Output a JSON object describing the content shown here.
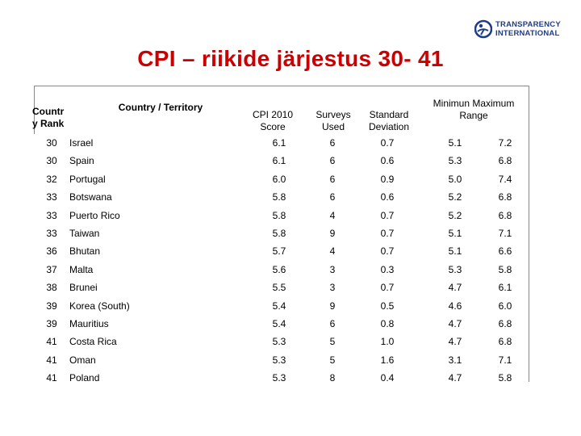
{
  "logo": {
    "line1": "TRANSPARENCY",
    "line2": "INTERNATIONAL"
  },
  "title": "CPI – riikide järjestus 30- 41",
  "headers": {
    "rank": "Countr y Rank",
    "country": "Country / Territory",
    "score": "CPI 2010 Score",
    "surveys": "Surveys Used",
    "sd": "Standard Deviation",
    "range": "Minimun Maximum Range"
  },
  "rows": [
    {
      "rank": "30",
      "country": "Israel",
      "score": "6.1",
      "surveys": "6",
      "sd": "0.7",
      "min": "5.1",
      "max": "7.2"
    },
    {
      "rank": "30",
      "country": "Spain",
      "score": "6.1",
      "surveys": "6",
      "sd": "0.6",
      "min": "5.3",
      "max": "6.8"
    },
    {
      "rank": "32",
      "country": "Portugal",
      "score": "6.0",
      "surveys": "6",
      "sd": "0.9",
      "min": "5.0",
      "max": "7.4"
    },
    {
      "rank": "33",
      "country": "Botswana",
      "score": "5.8",
      "surveys": "6",
      "sd": "0.6",
      "min": "5.2",
      "max": "6.8"
    },
    {
      "rank": "33",
      "country": "Puerto Rico",
      "score": "5.8",
      "surveys": "4",
      "sd": "0.7",
      "min": "5.2",
      "max": "6.8"
    },
    {
      "rank": "33",
      "country": "Taiwan",
      "score": "5.8",
      "surveys": "9",
      "sd": "0.7",
      "min": "5.1",
      "max": "7.1"
    },
    {
      "rank": "36",
      "country": "Bhutan",
      "score": "5.7",
      "surveys": "4",
      "sd": "0.7",
      "min": "5.1",
      "max": "6.6"
    },
    {
      "rank": "37",
      "country": "Malta",
      "score": "5.6",
      "surveys": "3",
      "sd": "0.3",
      "min": "5.3",
      "max": "5.8"
    },
    {
      "rank": "38",
      "country": "Brunei",
      "score": "5.5",
      "surveys": "3",
      "sd": "0.7",
      "min": "4.7",
      "max": "6.1"
    },
    {
      "rank": "39",
      "country": "Korea (South)",
      "score": "5.4",
      "surveys": "9",
      "sd": "0.5",
      "min": "4.6",
      "max": "6.0"
    },
    {
      "rank": "39",
      "country": "Mauritius",
      "score": "5.4",
      "surveys": "6",
      "sd": "0.8",
      "min": "4.7",
      "max": "6.8"
    },
    {
      "rank": "41",
      "country": "Costa Rica",
      "score": "5.3",
      "surveys": "5",
      "sd": "1.0",
      "min": "4.7",
      "max": "6.8"
    },
    {
      "rank": "41",
      "country": "Oman",
      "score": "5.3",
      "surveys": "5",
      "sd": "1.6",
      "min": "3.1",
      "max": "7.1"
    },
    {
      "rank": "41",
      "country": "Poland",
      "score": "5.3",
      "surveys": "8",
      "sd": "0.4",
      "min": "4.7",
      "max": "5.8"
    }
  ]
}
